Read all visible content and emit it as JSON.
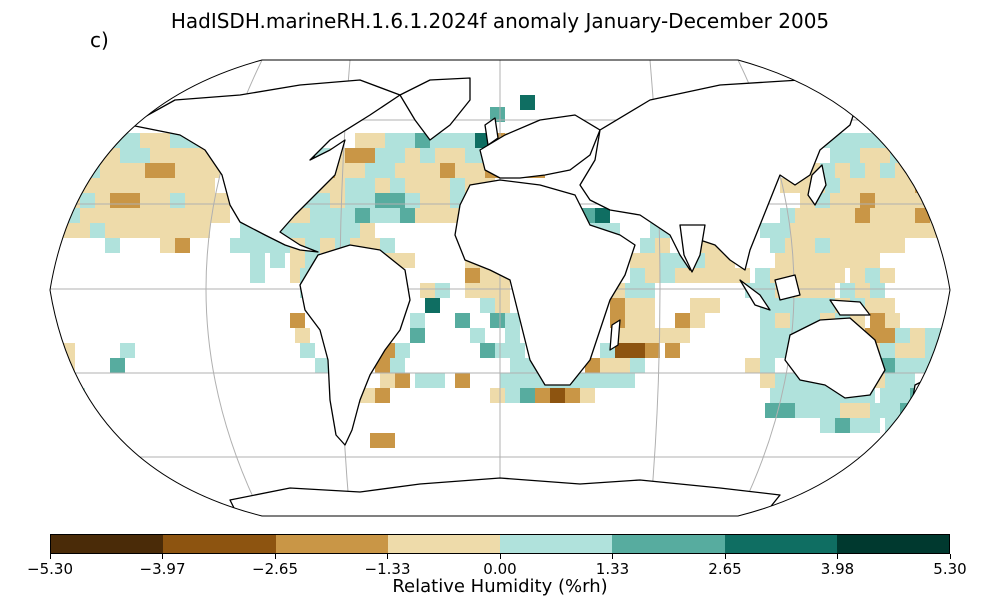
{
  "title": "HadISDH.marineRH.1.6.1.2024f anomaly January-December 2005",
  "panel_label": "c)",
  "colorbar": {
    "label": "Relative Humidity (%rh)",
    "ticks": [
      "−5.30",
      "−3.97",
      "−2.65",
      "−1.33",
      "0.00",
      "1.33",
      "2.65",
      "3.98",
      "5.30"
    ],
    "colors": [
      "#4a2b08",
      "#8d5410",
      "#c99646",
      "#eedbaa",
      "#b0e2dc",
      "#57ac9f",
      "#0f6e62",
      "#00392f"
    ]
  },
  "map": {
    "projection": "Robinson",
    "background": "#ffffff",
    "coastline_color": "#000000",
    "gridline_color": "#b0b0b0"
  }
}
